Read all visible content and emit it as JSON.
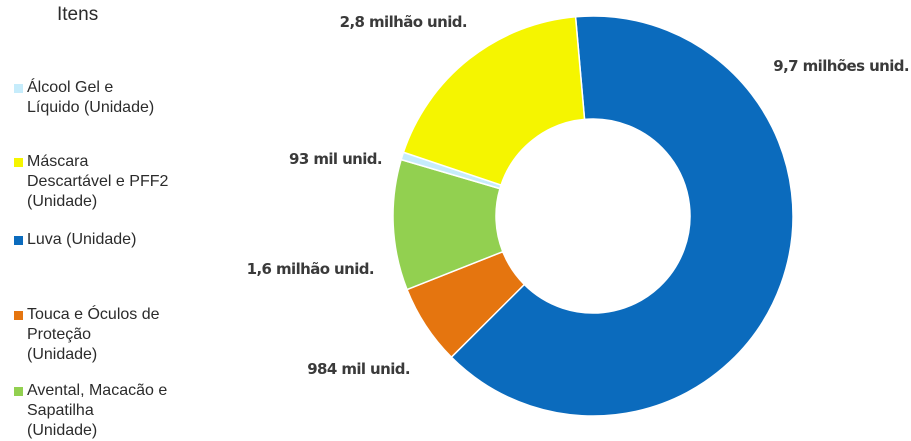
{
  "chart_data": {
    "type": "pie",
    "subtype": "donut",
    "legend_title": "Itens",
    "legend_position": "left",
    "slices": [
      {
        "name": "Álcool Gel e\nLíquido (Unidade)",
        "value": 93000,
        "label": "93 mil unid.",
        "color": "#c6ecfb"
      },
      {
        "name": "Máscara\nDescartável e PFF2\n(Unidade)",
        "value": 2800000,
        "label": "2,8 milhão unid.",
        "color": "#f5f500"
      },
      {
        "name": "Luva (Unidade)",
        "value": 9700000,
        "label": "9,7 milhões unid.",
        "color": "#0b6bbd"
      },
      {
        "name": "Touca e Óculos de\nProteção\n(Unidade)",
        "value": 984000,
        "label": "984 mil unid.",
        "color": "#e5750f"
      },
      {
        "name": "Avental, Macacão e\nSapatilha\n(Unidade)",
        "value": 1600000,
        "label": "1,6 milhão unid.",
        "color": "#92d050"
      }
    ],
    "draw_order": [
      2,
      3,
      4,
      0,
      1
    ]
  }
}
